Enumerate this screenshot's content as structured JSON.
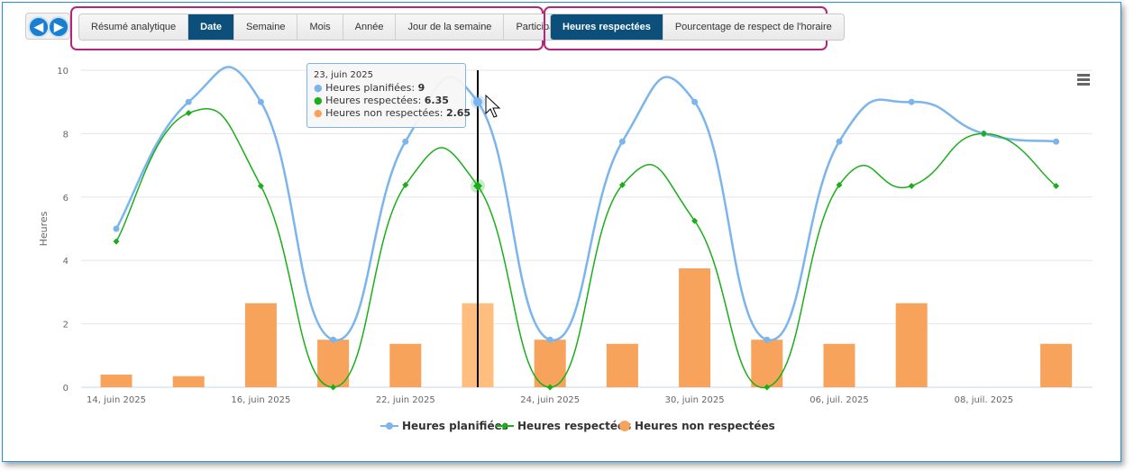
{
  "toolbar": {
    "view_buttons": [
      {
        "label": "Résumé analytique",
        "active": false
      },
      {
        "label": "Date",
        "active": true
      },
      {
        "label": "Semaine",
        "active": false
      },
      {
        "label": "Mois",
        "active": false
      },
      {
        "label": "Année",
        "active": false
      },
      {
        "label": "Jour de la semaine",
        "active": false
      },
      {
        "label": "Participant",
        "active": false
      }
    ],
    "metric_buttons": [
      {
        "label": "Heures respectées",
        "active": true
      },
      {
        "label": "Pourcentage de respect de l'horaire",
        "active": false
      }
    ],
    "prev_icon": "arrow-left-icon",
    "next_icon": "arrow-right-icon"
  },
  "tooltip": {
    "date": "23, juin 2025",
    "lines": [
      {
        "name": "Heures planifiées",
        "value": "9",
        "color": "#7cb5ec"
      },
      {
        "name": "Heures respectées",
        "value": "6.35",
        "color": "#1aaf1a"
      },
      {
        "name": "Heures non respectées",
        "value": "2.65",
        "color": "#f7a35c"
      }
    ]
  },
  "chart_data": {
    "type": "line",
    "ylabel": "Heures",
    "ylim": [
      0,
      10
    ],
    "yticks": [
      0,
      2,
      4,
      6,
      8,
      10
    ],
    "x_tick_labels": [
      "14, juin 2025",
      "16, juin 2025",
      "22, juin 2025",
      "24, juin 2025",
      "30, juin 2025",
      "06, juil. 2025",
      "08, juil. 2025"
    ],
    "x_tick_index": [
      0,
      2,
      4,
      6,
      8,
      10,
      12
    ],
    "n_points": 14,
    "grid": true,
    "legend_position": "bottom-center",
    "hover_index": 5,
    "series": [
      {
        "name": "Heures planifiées",
        "type": "spline",
        "color": "#7cb5ec",
        "values": [
          5.0,
          9.0,
          9.0,
          1.5,
          7.75,
          9.0,
          1.5,
          7.75,
          9.0,
          1.5,
          7.75,
          9.0,
          8.0,
          7.75
        ]
      },
      {
        "name": "Heures respectées",
        "type": "spline",
        "color": "#1aaf1a",
        "values": [
          4.6,
          8.65,
          6.35,
          0.0,
          6.38,
          6.35,
          0.0,
          6.38,
          5.25,
          0.0,
          6.38,
          6.35,
          8.0,
          6.35
        ]
      },
      {
        "name": "Heures non respectées",
        "type": "column",
        "color": "#f7a35c",
        "values": [
          0.4,
          0.35,
          2.65,
          1.5,
          1.37,
          2.65,
          1.5,
          1.37,
          3.75,
          1.5,
          1.37,
          2.65,
          0.0,
          1.37
        ]
      }
    ]
  }
}
